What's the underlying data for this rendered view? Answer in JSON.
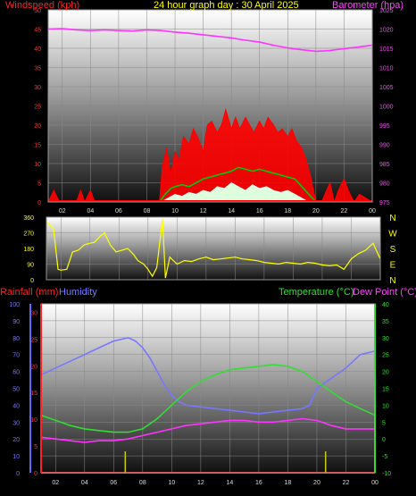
{
  "header": {
    "wind_title": "Windspeed (kph)",
    "date_title": "24 hour graph day : 30 April 2025",
    "baro_title": "Barometer (hpa)"
  },
  "bottom_header": {
    "rain_title": "Rainfall (mm)",
    "hum_title": "Humidity",
    "temp_title": "Temperature (°C)",
    "dew_title": "Dew Point (°C)"
  },
  "colors": {
    "wind": "#ff0000",
    "gust_fill": "#ff0000",
    "wind_avg": "#00cc00",
    "wind_low": "#ddffdd",
    "barometer": "#ff33ff",
    "direction": "#ffff00",
    "temperature": "#33dd33",
    "dewpoint": "#ff33ff",
    "humidity": "#7777ff",
    "rainfall": "#ff2222",
    "rain_rate": "#cccc00",
    "grid": "#888888",
    "axis_text": "#dddddd"
  },
  "chart_data": [
    {
      "type": "line",
      "name": "wind-barometer",
      "x_ticks": [
        "02",
        "04",
        "06",
        "08",
        "10",
        "12",
        "14",
        "16",
        "18",
        "20",
        "22",
        "00"
      ],
      "xlim": [
        1,
        24
      ],
      "left_axis": {
        "ticks": [
          "0",
          "5",
          "10",
          "15",
          "20",
          "25",
          "30",
          "35",
          "40",
          "45",
          "50"
        ],
        "ylim": [
          0,
          50
        ]
      },
      "right_axis": {
        "ticks": [
          "975",
          "980",
          "985",
          "990",
          "995",
          "1000",
          "1005",
          "1010",
          "1015",
          "1020",
          "1025"
        ],
        "ylim": [
          975,
          1025
        ]
      },
      "series": [
        {
          "key": "barometer",
          "axis": "right",
          "x": [
            1,
            2,
            3,
            4,
            5,
            6,
            7,
            8,
            9,
            10,
            11,
            12,
            13,
            14,
            15,
            16,
            17,
            18,
            19,
            20,
            21,
            22,
            23,
            24
          ],
          "y": [
            1020,
            1020.1,
            1019.8,
            1019.6,
            1019.8,
            1019.6,
            1019.5,
            1019.8,
            1019.6,
            1019.2,
            1018.9,
            1018.5,
            1018.1,
            1017.7,
            1017.1,
            1016.6,
            1015.8,
            1015.1,
            1014.6,
            1014.2,
            1014.4,
            1014.9,
            1015.3,
            1015.8
          ]
        },
        {
          "key": "gust",
          "axis": "left",
          "x": [
            1,
            1.4,
            1.8,
            3,
            3.3,
            3.6,
            4,
            4.3,
            8.9,
            9.1,
            9.4,
            9.7,
            10,
            10.3,
            10.6,
            11,
            11.3,
            11.6,
            12,
            12.3,
            12.6,
            13,
            13.3,
            13.6,
            14,
            14.3,
            14.6,
            15,
            15.3,
            15.6,
            16,
            16.3,
            16.6,
            17,
            17.3,
            17.6,
            18,
            18.3,
            18.6,
            19,
            19.3,
            19.6,
            20,
            20.4,
            21,
            21.3,
            21.6,
            22,
            22.3,
            22.7,
            23.1,
            24
          ],
          "y": [
            0,
            3,
            0,
            0,
            3,
            0,
            3,
            0,
            0,
            9,
            14,
            7,
            13,
            11,
            17,
            15,
            19,
            17,
            13,
            20,
            21,
            18,
            20,
            24,
            19,
            22,
            19,
            22,
            20,
            18,
            21,
            19,
            22,
            20,
            18,
            19,
            17,
            19,
            16,
            14,
            11,
            7,
            0,
            0,
            5,
            0,
            3,
            6,
            3,
            0,
            2,
            0
          ]
        },
        {
          "key": "wind_avg",
          "axis": "left",
          "x": [
            8.9,
            9.3,
            9.7,
            10,
            10.5,
            11,
            11.5,
            12,
            12.5,
            13,
            13.5,
            14,
            14.5,
            15,
            15.5,
            16,
            16.5,
            17,
            17.5,
            18,
            18.5,
            19,
            19.5,
            20
          ],
          "y": [
            0,
            2,
            3.5,
            4,
            4.5,
            4,
            5,
            6,
            6.5,
            7,
            7.5,
            8,
            9,
            8.5,
            8,
            8.5,
            8,
            7.5,
            7,
            6.5,
            6,
            4,
            2,
            0
          ]
        },
        {
          "key": "wind_low",
          "axis": "left",
          "x": [
            9,
            9.5,
            10,
            10.5,
            11,
            11.5,
            12,
            12.5,
            13,
            13.5,
            14,
            14.5,
            15,
            15.5,
            16,
            16.5,
            17,
            17.5,
            18,
            18.5,
            19,
            19.5
          ],
          "y": [
            0,
            1,
            2,
            1.5,
            2.5,
            2,
            3,
            2.5,
            4,
            3.5,
            5,
            4,
            3,
            4.5,
            3.5,
            4,
            3,
            2.5,
            3,
            2,
            1,
            0
          ]
        }
      ]
    },
    {
      "type": "scatter",
      "name": "wind-direction",
      "x_ticks": [
        "02",
        "04",
        "06",
        "08",
        "10",
        "12",
        "14",
        "16",
        "18",
        "20",
        "22",
        "00"
      ],
      "xlim": [
        1,
        24
      ],
      "y_ticks": [
        "0",
        "90",
        "180",
        "270",
        "360"
      ],
      "ylim": [
        0,
        360
      ],
      "compass": [
        "N",
        "W",
        "S",
        "E",
        "N"
      ],
      "x": [
        1,
        1.2,
        1.5,
        1.8,
        2,
        2.4,
        2.8,
        3.2,
        3.6,
        4,
        4.3,
        4.7,
        5,
        5.4,
        5.8,
        6.2,
        6.6,
        7,
        7.3,
        7.7,
        8,
        8.3,
        8.6,
        9,
        9.2,
        9.5,
        10,
        10.5,
        11,
        11.5,
        12,
        12.5,
        13,
        13.5,
        14,
        14.5,
        15,
        15.5,
        16,
        16.5,
        17,
        17.5,
        18,
        18.5,
        19,
        19.5,
        20,
        20.5,
        21,
        21.5,
        22,
        22.5,
        23,
        23.5,
        24
      ],
      "y": [
        330,
        320,
        290,
        60,
        55,
        60,
        160,
        170,
        200,
        210,
        215,
        250,
        270,
        200,
        160,
        170,
        180,
        145,
        110,
        90,
        60,
        20,
        70,
        350,
        10,
        130,
        90,
        110,
        105,
        120,
        130,
        115,
        120,
        125,
        130,
        120,
        115,
        110,
        100,
        95,
        90,
        100,
        95,
        90,
        100,
        95,
        85,
        80,
        85,
        60,
        120,
        150,
        170,
        210,
        120
      ]
    },
    {
      "type": "line",
      "name": "temp-humidity-rain",
      "x_ticks": [
        "02",
        "04",
        "06",
        "08",
        "10",
        "12",
        "14",
        "16",
        "18",
        "20",
        "22",
        "00"
      ],
      "xlim": [
        1,
        24
      ],
      "humidity_axis": {
        "ticks": [
          "0",
          "10",
          "20",
          "30",
          "40",
          "50",
          "60",
          "70",
          "80",
          "90",
          "100"
        ],
        "ylim": [
          0,
          100
        ]
      },
      "rain_axis": {
        "ticks": [
          "0",
          "5",
          "10",
          "15",
          "20",
          "25",
          "30"
        ],
        "ylim": [
          0,
          30
        ]
      },
      "temp_axis": {
        "ticks": [
          "-10",
          "-5",
          "0",
          "5",
          "10",
          "15",
          "20",
          "25",
          "30",
          "35",
          "40"
        ],
        "ylim": [
          -10,
          40
        ]
      },
      "series": [
        {
          "key": "humidity",
          "axis": "humidity",
          "x": [
            1,
            2,
            3,
            4,
            5,
            6,
            7,
            7.5,
            8,
            8.5,
            9,
            9.5,
            10,
            10.5,
            11,
            12,
            13,
            14,
            15,
            16,
            17,
            18,
            19,
            19.5,
            20,
            21,
            22,
            23,
            24
          ],
          "y": [
            58,
            62,
            66,
            70,
            74,
            78,
            80,
            78,
            74,
            68,
            60,
            52,
            46,
            42,
            40,
            39,
            38,
            37,
            36,
            35,
            36,
            37,
            38,
            40,
            50,
            56,
            62,
            70,
            72
          ]
        },
        {
          "key": "temperature",
          "axis": "temp",
          "x": [
            1,
            2,
            3,
            4,
            5,
            6,
            7,
            8,
            9,
            10,
            11,
            12,
            13,
            14,
            15,
            16,
            17,
            18,
            19,
            20,
            21,
            22,
            23,
            24
          ],
          "y": [
            7,
            5.5,
            4,
            3,
            2.5,
            2,
            2,
            3,
            6,
            10,
            14,
            17,
            19,
            20.5,
            21,
            21.5,
            22,
            21.5,
            20,
            17,
            14,
            11,
            9,
            7
          ]
        },
        {
          "key": "dewpoint",
          "axis": "temp",
          "x": [
            1,
            2,
            3,
            4,
            5,
            6,
            7,
            8,
            9,
            10,
            11,
            12,
            13,
            14,
            15,
            16,
            17,
            18,
            19,
            20,
            21,
            22,
            23,
            24
          ],
          "y": [
            0.5,
            0,
            -0.5,
            -1,
            -0.5,
            -0.5,
            0,
            1,
            2,
            3,
            4,
            4.5,
            5,
            5.5,
            5.5,
            5,
            5,
            5.5,
            6,
            5.5,
            4,
            3,
            3,
            3
          ]
        },
        {
          "key": "rainfall",
          "axis": "rain",
          "x": [
            1,
            24
          ],
          "y": [
            0,
            0
          ]
        },
        {
          "key": "rain_rate",
          "axis": "rain",
          "x": [
            6.8,
            20.6
          ],
          "y": [
            4,
            4
          ]
        }
      ]
    }
  ]
}
